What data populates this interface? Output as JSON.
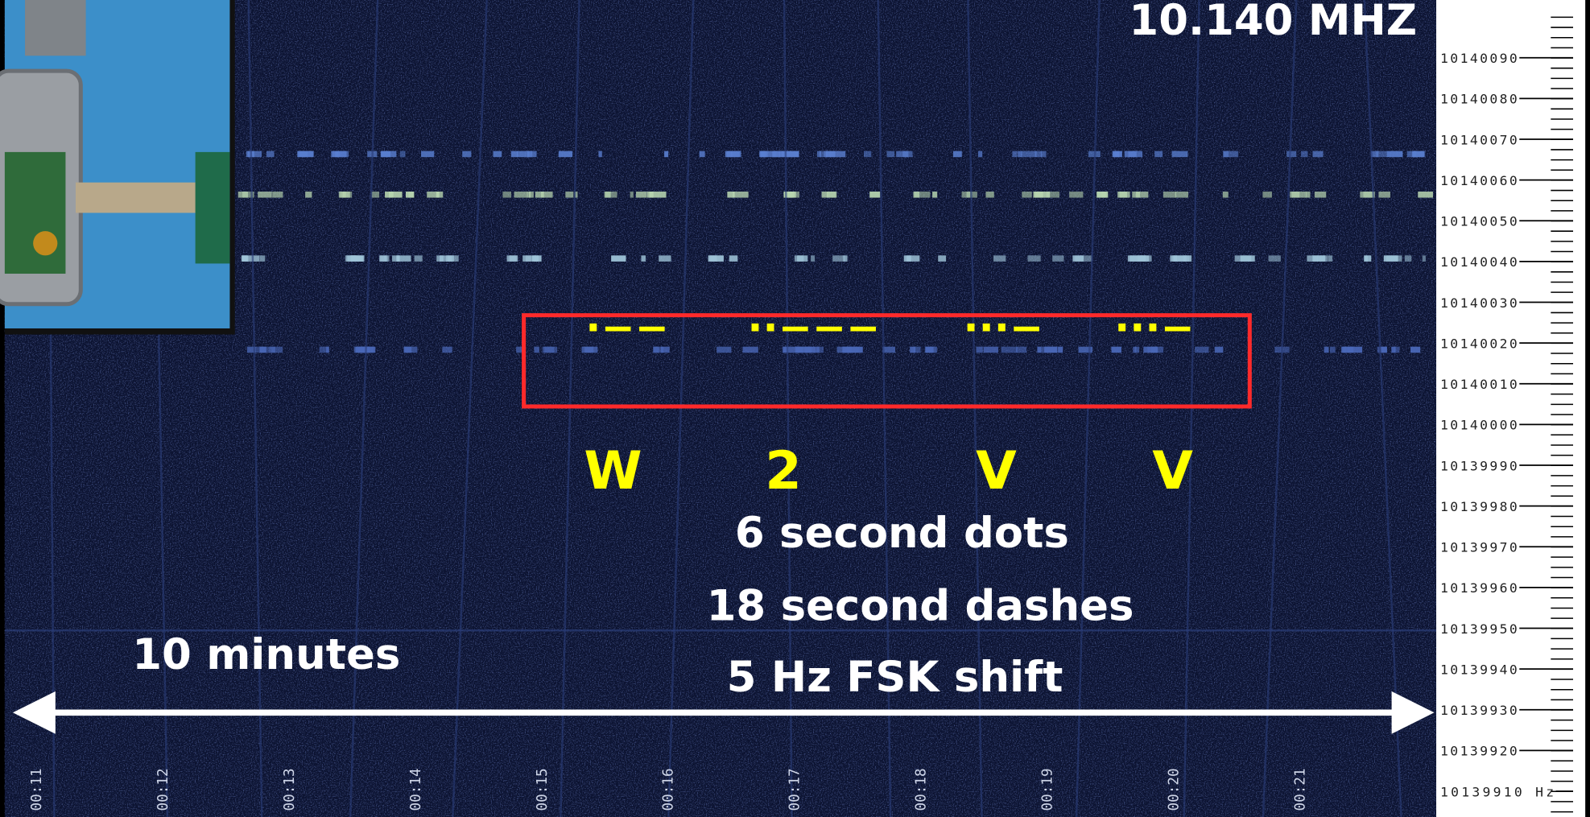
{
  "title": "10.140 MHZ",
  "morse_code": [
    "·−−",
    "··−−−",
    "···−",
    "···−"
  ],
  "letters": [
    "W",
    "2",
    "V",
    "V"
  ],
  "notes": [
    "6 second dots",
    "18 second dashes",
    "5 Hz FSK shift"
  ],
  "span_label": "10 minutes",
  "frequency_labels": [
    "10140090",
    "10140080",
    "10140070",
    "10140060",
    "10140050",
    "10140040",
    "10140030",
    "10140020",
    "10140010",
    "10140000",
    "10139990",
    "10139980",
    "10139970",
    "10139960",
    "10139950",
    "10139940",
    "10139930",
    "10139920",
    "10139910 Hz"
  ],
  "time_labels": [
    "00:11",
    "00:12",
    "00:13",
    "00:14",
    "00:15",
    "00:16",
    "00:17",
    "00:18",
    "00:19",
    "00:20",
    "00:21"
  ]
}
